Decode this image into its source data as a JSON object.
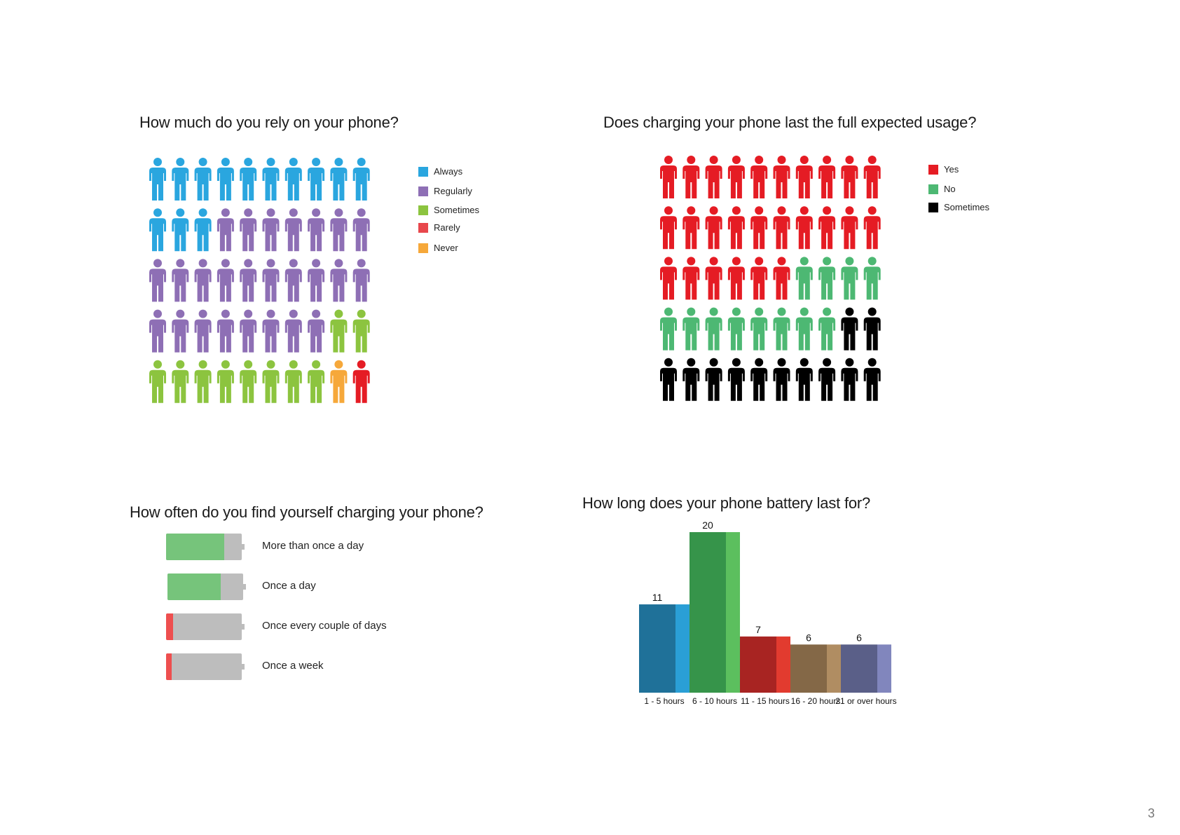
{
  "page_number": "3",
  "charts": {
    "rely": {
      "title": "How much do you rely on your phone?",
      "legend": [
        {
          "label": "Always",
          "color": "#2aa6df"
        },
        {
          "label": "Regularly",
          "color": "#8e6fb5"
        },
        {
          "label": "Sometimes",
          "color": "#8cc43f"
        },
        {
          "label": "Rarely",
          "color": "#e8474c"
        },
        {
          "label": "Never",
          "color": "#f6a83a"
        }
      ]
    },
    "charging_last": {
      "title": "Does charging your phone last the full expected usage?",
      "legend": [
        {
          "label": "Yes",
          "color": "#e51c24"
        },
        {
          "label": "No",
          "color": "#4db873"
        },
        {
          "label": "Sometimes",
          "color": "#000000"
        }
      ]
    },
    "charging_freq": {
      "title": "How often do you find yourself charging your phone?",
      "empty_color": "#bdbdbd",
      "items": [
        {
          "label": "More than once a day",
          "level": 0.77,
          "color": "#76c47b"
        },
        {
          "label": "Once a day",
          "level": 0.7,
          "color": "#76c47b"
        },
        {
          "label": "Once every couple of days",
          "level": 0.09,
          "color": "#ee4f4f"
        },
        {
          "label": "Once a week",
          "level": 0.07,
          "color": "#ee4f4f"
        }
      ]
    },
    "battery_life": {
      "title": "How long does your phone battery last for?"
    }
  },
  "chart_data": [
    {
      "type": "pictogram",
      "title": "How much do you rely on your phone?",
      "grid": {
        "rows": 5,
        "cols": 10
      },
      "series": [
        {
          "name": "Always",
          "count": 13,
          "color": "#2aa6df"
        },
        {
          "name": "Regularly",
          "count": 25,
          "color": "#8e6fb5"
        },
        {
          "name": "Sometimes",
          "count": 10,
          "color": "#8cc43f"
        },
        {
          "name": "Never",
          "count": 1,
          "color": "#f6a83a"
        },
        {
          "name": "Rarely",
          "count": 1,
          "color": "#e51c24"
        }
      ],
      "legend_position": "right"
    },
    {
      "type": "pictogram",
      "title": "Does charging your phone last the full expected usage?",
      "grid": {
        "rows": 5,
        "cols": 10
      },
      "series": [
        {
          "name": "Yes",
          "count": 26,
          "color": "#e51c24"
        },
        {
          "name": "No",
          "count": 12,
          "color": "#4db873"
        },
        {
          "name": "Sometimes",
          "count": 12,
          "color": "#000000"
        }
      ],
      "legend_position": "right"
    },
    {
      "type": "bar",
      "title": "How often do you find yourself charging your phone?",
      "categories": [
        "More than once a day",
        "Once a day",
        "Once every couple of days",
        "Once a week"
      ],
      "values": [
        0.77,
        0.7,
        0.09,
        0.07
      ],
      "colors": [
        "#76c47b",
        "#76c47b",
        "#ee4f4f",
        "#ee4f4f"
      ]
    },
    {
      "type": "bar",
      "title": "How long does your phone battery last for?",
      "categories": [
        "1 - 5 hours",
        "6 - 10 hours",
        "11 - 15 hours",
        "16 - 20 hours",
        "21 or over hours"
      ],
      "values": [
        11,
        20,
        7,
        6,
        6
      ],
      "data_labels": [
        "11",
        "20",
        "7",
        "6",
        "6"
      ],
      "colors": [
        {
          "front": "#1f7199",
          "side": "#2a9fd6"
        },
        {
          "front": "#36944a",
          "side": "#5cbf5e"
        },
        {
          "front": "#a82422",
          "side": "#e23b2f"
        },
        {
          "front": "#846847",
          "side": "#b08d62"
        },
        {
          "front": "#5a5f88",
          "side": "#8186bd"
        }
      ],
      "ylim": [
        0,
        20
      ],
      "grid": false
    }
  ]
}
